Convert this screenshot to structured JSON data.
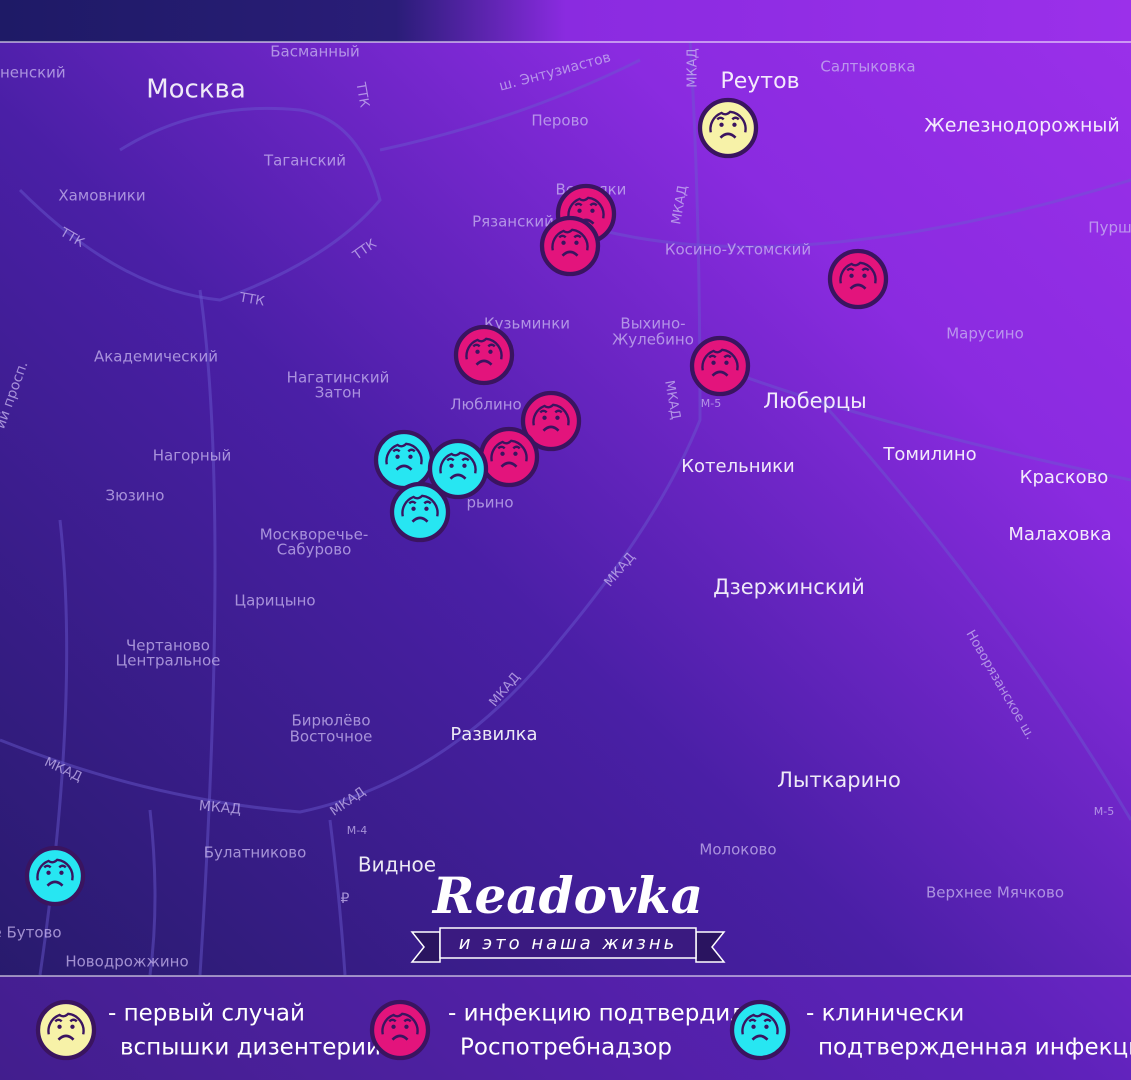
{
  "map": {
    "labels": [
      "Басманный",
      "ненский",
      "ш. Энтузиастов",
      "МКАД",
      "Реутов",
      "Салтыковка",
      "Москва",
      "ТТК",
      "Перово",
      "Железнодорожный",
      "Таганский",
      "Хамовники",
      "Вешняки",
      "Рязанский",
      "МКАД",
      "Косино-Ухтомский",
      "Пурш",
      "ТТК",
      "ТТК",
      "ТТК",
      "Кузьминки",
      "Выхино-",
      "Жулебино",
      "Марусино",
      "Академический",
      "Нагатинский",
      "Затон",
      "Люблино",
      "МКАД",
      "М-5",
      "Люберцы",
      "Нагорный",
      "Котельники",
      "Томилино",
      "Красково",
      "рьино",
      "Зюзино",
      "Москворечье-",
      "Сабурово",
      "Малаховка",
      "МКАД",
      "Дзержинский",
      "Царицыно",
      "Новорязанское ш.",
      "Чертаново",
      "Центральное",
      "Бирюлёво",
      "Восточное",
      "МКАД",
      "Развилка",
      "МКАД",
      "МКАД",
      "МКАД",
      "Лыткарино",
      "М-4",
      "М-5",
      "Булатниково",
      "Молоково",
      "Видное",
      "Верхнее Мячково",
      "е Бутово",
      "Новодрожжино",
      "₽",
      "ий просп."
    ]
  },
  "logo": {
    "title": "Readovka",
    "tagline": "и это наша жизнь"
  },
  "legend": [
    {
      "line1": "- первый случай",
      "line2": "вспышки дизентерии"
    },
    {
      "line1": "- инфекцию подтвердил",
      "line2": "Роспотребнадзор"
    },
    {
      "line1": "- клинически",
      "line2": "подтвержденная инфекция"
    }
  ]
}
